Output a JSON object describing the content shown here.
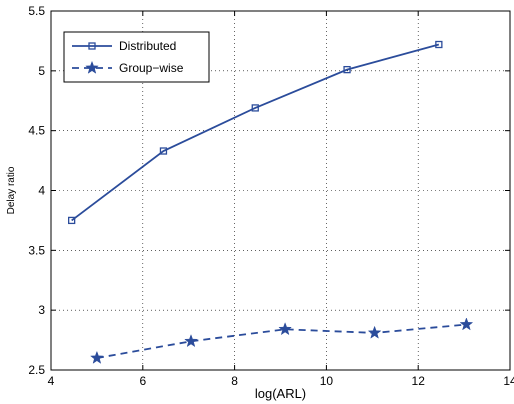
{
  "chart_data": {
    "type": "line",
    "xlabel": "log(ARL)",
    "ylabel": "Delay ratio",
    "xlim": [
      4,
      14
    ],
    "ylim": [
      2.5,
      5.5
    ],
    "xticks": [
      4,
      6,
      8,
      10,
      12,
      14
    ],
    "yticks": [
      2.5,
      3,
      3.5,
      4,
      4.5,
      5,
      5.5
    ],
    "xtick_labels": [
      "4",
      "6",
      "8",
      "10",
      "12",
      "14"
    ],
    "ytick_labels": [
      "2.5",
      "3",
      "3.5",
      "4",
      "4.5",
      "5",
      "5.5"
    ],
    "grid": true,
    "legend_position": "top-left",
    "series_color": "#2b4c9b",
    "series": [
      {
        "name": "Distributed",
        "line_style": "solid",
        "marker": "square",
        "x": [
          4.45,
          6.45,
          8.45,
          10.45,
          12.45
        ],
        "y": [
          3.75,
          4.33,
          4.69,
          5.01,
          5.22
        ]
      },
      {
        "name": "Group−wise",
        "line_style": "dashed",
        "marker": "star",
        "x": [
          5.0,
          7.05,
          9.1,
          11.05,
          13.05
        ],
        "y": [
          2.6,
          2.74,
          2.84,
          2.81,
          2.88
        ]
      }
    ]
  }
}
